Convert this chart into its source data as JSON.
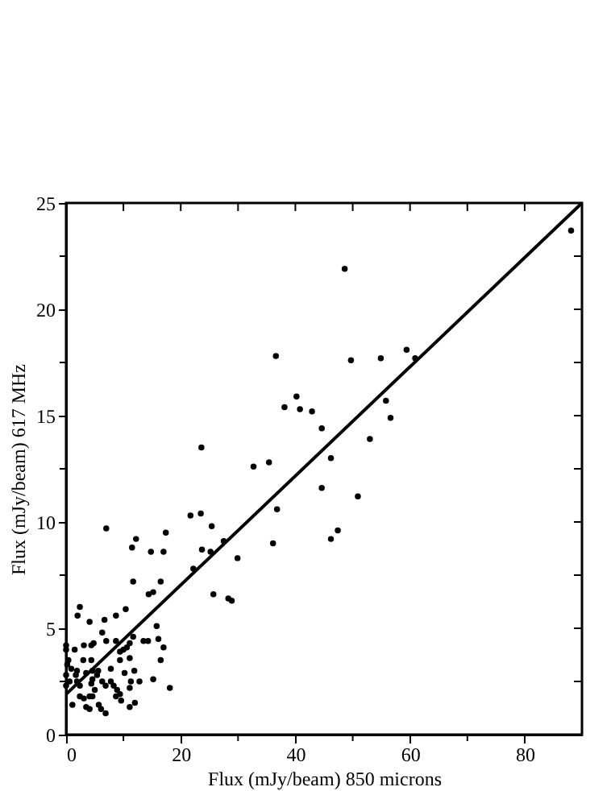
{
  "chart_data": {
    "type": "scatter",
    "xlabel": "Flux  (mJy/beam)     850 microns",
    "ylabel": "Flux  (mJy/beam)     617 MHz",
    "xlim": [
      0,
      90
    ],
    "ylim": [
      0,
      25
    ],
    "xticks": [
      0,
      {
        "value": 10,
        "label": null
      },
      20,
      {
        "value": 30,
        "label": null
      },
      40,
      {
        "value": 50,
        "label": null
      },
      60,
      {
        "value": 70,
        "label": null
      },
      80
    ],
    "yticks": [
      0,
      {
        "value": 2.5,
        "label": null
      },
      5,
      {
        "value": 7.5,
        "label": null
      },
      10,
      {
        "value": 12.5,
        "label": null
      },
      15,
      {
        "value": 17.5,
        "label": null
      },
      20,
      {
        "value": 22.5,
        "label": null
      },
      25
    ],
    "grid": false,
    "series": [
      {
        "color": "#000000",
        "marker": "circle",
        "x": [
          23.6,
          36.6,
          38.1,
          40.2,
          40.8,
          42.9,
          32.7,
          35.4,
          88.1,
          48.6,
          49.7,
          54.9,
          59.4,
          60.9,
          55.8,
          56.6,
          44.6,
          53,
          46.2,
          44.6,
          50.9,
          47.4,
          46.2,
          36.8,
          36.1,
          21.7,
          23.5,
          25.4,
          23.7,
          25.2,
          27.5,
          29.9,
          25.7,
          28.3,
          28.9,
          22.2,
          7.0,
          11.5,
          12.2,
          14.8,
          17.0,
          17.4,
          11.7,
          16.5,
          14.4,
          15.2,
          10.4,
          2.4,
          2.0,
          4.1,
          6.7,
          8.7,
          6.3,
          7.0,
          4.4,
          0,
          0,
          1.5,
          3.1,
          4.8,
          8.7,
          10,
          10.6,
          11.1,
          11.7,
          13.5,
          14.3,
          15.8,
          16.1,
          17.0,
          16.5,
          9.4,
          9.4,
          11.1,
          7.8,
          4.4,
          3.0,
          0.4,
          0.2,
          0.9,
          1.9,
          1.7,
          0.6,
          1.9,
          3.5,
          4.6,
          5.4,
          4.6,
          5.6,
          4.4,
          6.3,
          6.9,
          7.8,
          8.3,
          8.9,
          9.4,
          9.6,
          8.7,
          11.1,
          11.3,
          10.2,
          11.9,
          12.8,
          15.2,
          18.1,
          12.0,
          11.1,
          6.9,
          5.7,
          6.1,
          3.5,
          4.1,
          1.1,
          2.4,
          3.1,
          4.1,
          4.6,
          2.4,
          5.0,
          0,
          0
        ],
        "values": [
          13.5,
          17.8,
          15.4,
          15.9,
          15.3,
          15.2,
          12.6,
          12.8,
          23.7,
          21.9,
          17.6,
          17.7,
          18.1,
          17.7,
          15.7,
          14.9,
          14.4,
          13.9,
          13,
          11.6,
          11.2,
          9.6,
          9.2,
          10.6,
          9.0,
          10.3,
          10.4,
          9.8,
          8.7,
          8.6,
          9.1,
          8.3,
          6.6,
          6.4,
          6.3,
          7.8,
          9.7,
          8.8,
          9.2,
          8.6,
          8.6,
          9.5,
          7.2,
          7.2,
          6.6,
          6.7,
          5.9,
          6.0,
          5.6,
          5.3,
          5.4,
          5.6,
          4.8,
          4.4,
          4.2,
          4.2,
          4.0,
          4.0,
          4.2,
          4.3,
          4.4,
          4.0,
          4.1,
          4.3,
          4.6,
          4.4,
          4.4,
          5.1,
          4.5,
          4.1,
          3.5,
          3.9,
          3.5,
          3.6,
          3.1,
          3.5,
          3.5,
          3.5,
          3.3,
          3.1,
          3.0,
          2.8,
          2.5,
          2.5,
          2.9,
          3.0,
          2.8,
          2.6,
          3.0,
          2.4,
          2.5,
          2.3,
          2.5,
          2.3,
          2.1,
          1.9,
          1.6,
          1.8,
          2.2,
          2.5,
          2.9,
          3.0,
          2.5,
          2.6,
          2.2,
          1.5,
          1.3,
          1.0,
          1.4,
          1.2,
          1.3,
          1.2,
          1.4,
          1.8,
          1.7,
          1.8,
          1.8,
          2.3,
          2.1,
          2.8,
          2.3
        ]
      },
      {
        "type": "line",
        "color": "#000000",
        "marker": "none",
        "line_style": "solid",
        "x": [
          0,
          90
        ],
        "values": [
          1.9,
          25
        ]
      }
    ]
  }
}
